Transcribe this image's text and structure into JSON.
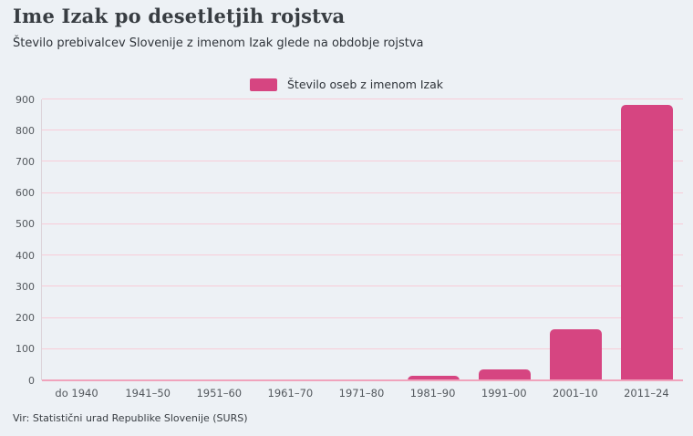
{
  "header": {
    "title": "Ime Izak po desetletjih rojstva",
    "subtitle": "Število prebivalcev Slovenije z imenom Izak glede na obdobje rojstva"
  },
  "chart_data": {
    "type": "bar",
    "title": "Ime Izak po desetletjih rojstva",
    "subtitle": "Število prebivalcev Slovenije z imenom Izak glede na obdobje rojstva",
    "categories": [
      "do 1940",
      "1941–50",
      "1951–60",
      "1961–70",
      "1971–80",
      "1981–90",
      "1991–00",
      "2001–10",
      "2011–24"
    ],
    "series": [
      {
        "name": "Število oseb z imenom Izak",
        "color": "#d64581",
        "values": [
          0,
          0,
          0,
          0,
          0,
          15,
          35,
          165,
          883
        ]
      }
    ],
    "xlabel": "",
    "ylabel": "",
    "ylim": [
      0,
      900
    ],
    "ytick_step": 100,
    "grid": true,
    "legend_position": "top-center"
  },
  "footer": {
    "source": "Vir: Statistični urad Republike Slovenije (SURS)"
  },
  "colors": {
    "accent": "#d64581",
    "background": "#edf1f5",
    "gridline": "#f8ccd8",
    "zero_line": "#f0a3bc",
    "axis_line": "#ddd4da",
    "title_text": "#383d42",
    "body_text": "#2f343a",
    "tick_label_text": "#53585d"
  }
}
